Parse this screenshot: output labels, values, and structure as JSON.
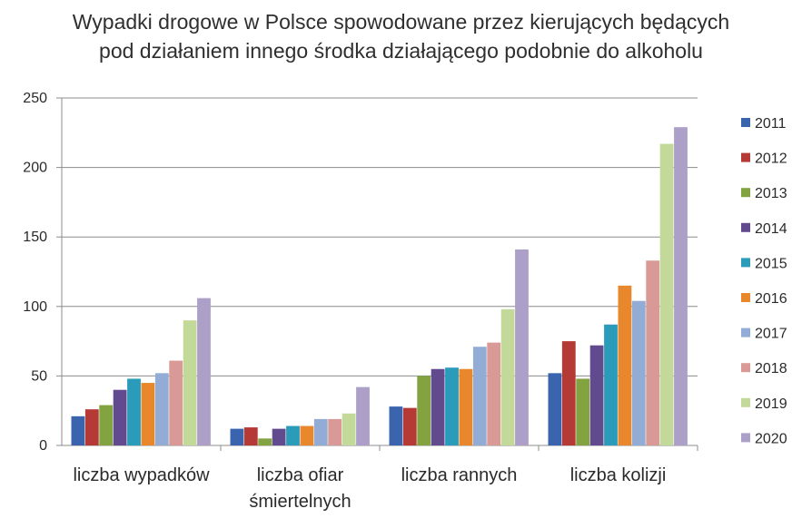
{
  "chart_data": {
    "type": "bar",
    "title_lines": [
      "Wypadki drogowe w Polsce spowodowane przez kierujących będących",
      "pod działaniem innego środka działającego podobnie do alkoholu"
    ],
    "xlabel": "",
    "ylabel": "",
    "ylim": [
      0,
      250
    ],
    "yticks": [
      0,
      50,
      100,
      150,
      200,
      250
    ],
    "grid": true,
    "legend_position": "right",
    "categories": [
      [
        "liczba wypadków"
      ],
      [
        "liczba ofiar",
        "śmiertelnych"
      ],
      [
        "liczba rannych"
      ],
      [
        "liczba kolizji"
      ]
    ],
    "series": [
      {
        "name": "2011",
        "color": "#3a64ad",
        "values": [
          21,
          12,
          28,
          52
        ]
      },
      {
        "name": "2012",
        "color": "#b53a35",
        "values": [
          26,
          13,
          27,
          75
        ]
      },
      {
        "name": "2013",
        "color": "#82a33f",
        "values": [
          29,
          5,
          50,
          48
        ]
      },
      {
        "name": "2014",
        "color": "#624a8f",
        "values": [
          40,
          12,
          55,
          72
        ]
      },
      {
        "name": "2015",
        "color": "#2a9bb9",
        "values": [
          48,
          14,
          56,
          87
        ]
      },
      {
        "name": "2016",
        "color": "#e8872c",
        "values": [
          45,
          14,
          55,
          115
        ]
      },
      {
        "name": "2017",
        "color": "#93acd6",
        "values": [
          52,
          19,
          71,
          104
        ]
      },
      {
        "name": "2018",
        "color": "#d99a97",
        "values": [
          61,
          19,
          74,
          133
        ]
      },
      {
        "name": "2019",
        "color": "#c3d99a",
        "values": [
          90,
          23,
          98,
          217
        ]
      },
      {
        "name": "2020",
        "color": "#aca0c8",
        "values": [
          106,
          42,
          141,
          229
        ]
      }
    ]
  }
}
